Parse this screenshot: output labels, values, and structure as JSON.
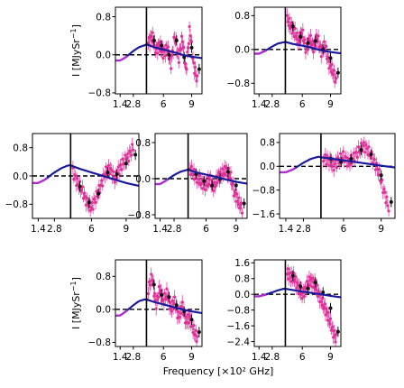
{
  "figure": {
    "xlabel": "Frequency [×10² GHz]",
    "ylabel_prefix": "I [MJySr",
    "ylabel_exp": "−1",
    "ylabel_suffix": "]"
  },
  "colors": {
    "model": "#1a1aa0",
    "model_low": "#b02bd0",
    "data": "#e0309a",
    "zero_line": "#000000",
    "divider": "#000000",
    "binned": "#111111"
  },
  "chart_data": [
    {
      "type": "scatter",
      "xlim": [
        0.9,
        10.1
      ],
      "ylim": [
        -0.82,
        1.0
      ],
      "xticks": [
        1.4,
        2.8,
        6,
        9
      ],
      "xtick_labels": [
        "1.4",
        "2.8",
        "6",
        "9"
      ],
      "yticks": [
        0.8,
        0.0,
        -0.8
      ],
      "ytick_labels": [
        "0.8",
        "0.0",
        "−0.8"
      ],
      "divider_x": 4.2,
      "show_ylabel": true,
      "show_xlabel": false,
      "model": {
        "x": [
          0.9,
          1.4,
          2.0,
          2.8,
          3.4,
          4.0,
          4.2,
          5,
          6,
          7,
          8,
          9,
          10.1
        ],
        "y": [
          -0.12,
          -0.12,
          -0.05,
          0.08,
          0.16,
          0.2,
          0.22,
          0.16,
          0.11,
          0.06,
          0.0,
          -0.04,
          -0.07
        ]
      },
      "data": {
        "x": [
          4.4,
          4.8,
          5.2,
          5.6,
          6.0,
          6.4,
          6.8,
          7.2,
          7.6,
          8.0,
          8.4,
          8.8,
          9.2,
          9.6
        ],
        "y": [
          0.25,
          0.4,
          0.1,
          0.2,
          0.02,
          0.15,
          -0.2,
          0.4,
          -0.1,
          0.35,
          -0.35,
          0.55,
          -0.2,
          -0.55
        ]
      },
      "binned": {
        "x": [
          5.0,
          5.8,
          6.6,
          7.4,
          8.2,
          9.0,
          9.8
        ],
        "y": [
          0.3,
          0.2,
          0.0,
          0.3,
          -0.05,
          0.15,
          -0.3
        ]
      }
    },
    {
      "type": "scatter",
      "xlim": [
        0.9,
        10.1
      ],
      "ylim": [
        -1.05,
        1.0
      ],
      "xticks": [
        1.4,
        2.8,
        6,
        9
      ],
      "xtick_labels": [
        "1.4",
        "2.8",
        "6",
        "9"
      ],
      "yticks": [
        0.8,
        0.0,
        -0.8
      ],
      "ytick_labels": [
        "0.8",
        "0.0",
        "−0.8"
      ],
      "divider_x": 4.2,
      "show_ylabel": false,
      "show_xlabel": false,
      "model": {
        "x": [
          0.9,
          1.4,
          2.0,
          2.8,
          3.4,
          4.0,
          4.2,
          5,
          6,
          7,
          8,
          9,
          10.1
        ],
        "y": [
          -0.1,
          -0.1,
          -0.04,
          0.07,
          0.14,
          0.17,
          0.18,
          0.13,
          0.09,
          0.04,
          -0.02,
          -0.06,
          -0.09
        ]
      },
      "data": {
        "x": [
          4.4,
          4.8,
          5.2,
          5.6,
          6.0,
          6.4,
          6.8,
          7.2,
          7.6,
          8.0,
          8.4,
          8.8,
          9.2,
          9.6
        ],
        "y": [
          0.7,
          0.55,
          0.4,
          0.2,
          0.4,
          0.0,
          0.25,
          0.05,
          0.3,
          -0.05,
          0.1,
          -0.3,
          -0.5,
          -0.75
        ]
      },
      "binned": {
        "x": [
          5.0,
          5.8,
          6.6,
          7.4,
          8.2,
          9.0,
          9.8
        ],
        "y": [
          0.55,
          0.3,
          0.15,
          0.2,
          0.0,
          -0.2,
          -0.55
        ]
      }
    },
    {
      "type": "scatter",
      "xlim": [
        0.9,
        10.1
      ],
      "ylim": [
        -1.2,
        1.2
      ],
      "xticks": [
        1.4,
        2.8,
        6,
        9
      ],
      "xtick_labels": [
        "1.4",
        "2.8",
        "6",
        "9"
      ],
      "yticks": [
        0.8,
        0.0,
        -0.8
      ],
      "ytick_labels": [
        "0.8",
        "0.0",
        "−0.8"
      ],
      "divider_x": 4.2,
      "show_ylabel": true,
      "show_xlabel": false,
      "model": {
        "x": [
          0.9,
          1.4,
          2.0,
          2.8,
          3.4,
          4.0,
          4.2,
          5,
          6,
          7,
          8,
          9,
          10.1
        ],
        "y": [
          -0.2,
          -0.2,
          -0.1,
          0.1,
          0.22,
          0.3,
          0.3,
          0.2,
          0.1,
          0.0,
          -0.1,
          -0.2,
          -0.28
        ]
      },
      "data": {
        "x": [
          4.4,
          4.8,
          5.2,
          5.6,
          6.0,
          6.4,
          6.8,
          7.2,
          7.6,
          8.0,
          8.4,
          8.8,
          9.2,
          9.6
        ],
        "y": [
          0.1,
          -0.2,
          -0.4,
          -0.75,
          -0.9,
          -0.6,
          -0.3,
          0.1,
          0.2,
          -0.1,
          0.2,
          0.4,
          0.55,
          0.8
        ]
      },
      "binned": {
        "x": [
          5.0,
          5.8,
          6.6,
          7.4,
          8.2,
          9.0,
          9.8
        ],
        "y": [
          -0.3,
          -0.75,
          -0.5,
          0.1,
          0.05,
          0.35,
          0.6
        ]
      }
    },
    {
      "type": "scatter",
      "xlim": [
        0.9,
        10.1
      ],
      "ylim": [
        -0.88,
        1.0
      ],
      "xticks": [
        1.4,
        2.8,
        6,
        9
      ],
      "xtick_labels": [
        "1.4",
        "2.8",
        "6",
        "9"
      ],
      "yticks": [
        0.8,
        0.0,
        -0.8
      ],
      "ytick_labels": [
        "0.8",
        "0.0",
        "−0.8"
      ],
      "divider_x": 4.2,
      "show_ylabel": false,
      "show_xlabel": false,
      "model": {
        "x": [
          0.9,
          1.4,
          2.0,
          2.8,
          3.4,
          4.0,
          4.2,
          5,
          6,
          7,
          8,
          9,
          10.1
        ],
        "y": [
          -0.12,
          -0.12,
          -0.04,
          0.08,
          0.15,
          0.19,
          0.2,
          0.14,
          0.09,
          0.04,
          -0.02,
          -0.07,
          -0.11
        ]
      },
      "data": {
        "x": [
          4.4,
          4.8,
          5.2,
          5.6,
          6.0,
          6.4,
          6.8,
          7.2,
          7.6,
          8.0,
          8.4,
          8.8,
          9.2,
          9.6
        ],
        "y": [
          0.2,
          0.1,
          0.0,
          -0.1,
          -0.15,
          0.0,
          -0.2,
          0.05,
          0.1,
          0.2,
          0.1,
          -0.3,
          -0.5,
          -0.65
        ]
      },
      "binned": {
        "x": [
          5.0,
          5.8,
          6.6,
          7.4,
          8.2,
          9.0,
          9.8
        ],
        "y": [
          0.1,
          -0.05,
          -0.15,
          0.0,
          0.15,
          -0.15,
          -0.55
        ]
      }
    },
    {
      "type": "scatter",
      "xlim": [
        0.9,
        10.1
      ],
      "ylim": [
        -1.75,
        1.1
      ],
      "xticks": [
        1.4,
        2.8,
        6,
        9
      ],
      "xtick_labels": [
        "1.4",
        "2.8",
        "6",
        "9"
      ],
      "yticks": [
        0.8,
        0.0,
        -0.8,
        -1.6
      ],
      "ytick_labels": [
        "0.8",
        "0.0",
        "−0.8",
        "−1.6"
      ],
      "divider_x": 4.2,
      "show_ylabel": false,
      "show_xlabel": false,
      "model": {
        "x": [
          0.9,
          1.4,
          2.0,
          2.8,
          3.4,
          4.0,
          4.2,
          5,
          6,
          7,
          8,
          9,
          10.1
        ],
        "y": [
          -0.2,
          -0.2,
          -0.1,
          0.12,
          0.25,
          0.32,
          0.3,
          0.26,
          0.2,
          0.14,
          0.08,
          0.02,
          -0.04
        ]
      },
      "data": {
        "x": [
          4.4,
          4.8,
          5.2,
          5.6,
          6.0,
          6.4,
          6.8,
          7.2,
          7.6,
          8.0,
          8.4,
          8.8,
          9.2,
          9.6
        ],
        "y": [
          0.3,
          0.2,
          0.0,
          0.2,
          0.35,
          0.1,
          0.3,
          0.5,
          0.7,
          0.5,
          0.2,
          -0.2,
          -0.8,
          -1.4
        ]
      },
      "binned": {
        "x": [
          5.0,
          5.8,
          6.6,
          7.4,
          8.2,
          9.0,
          9.8
        ],
        "y": [
          0.25,
          0.15,
          0.25,
          0.55,
          0.4,
          -0.3,
          -1.2
        ]
      }
    },
    {
      "type": "scatter",
      "xlim": [
        0.9,
        10.1
      ],
      "ylim": [
        -0.9,
        1.2
      ],
      "xticks": [
        1.4,
        2.8,
        6,
        9
      ],
      "xtick_labels": [
        "1.4",
        "2.8",
        "6",
        "9"
      ],
      "yticks": [
        0.8,
        0.0,
        -0.8
      ],
      "ytick_labels": [
        "0.8",
        "0.0",
        "−0.8"
      ],
      "divider_x": 4.2,
      "show_ylabel": true,
      "show_xlabel": true,
      "model": {
        "x": [
          0.9,
          1.4,
          2.0,
          2.8,
          3.4,
          4.0,
          4.2,
          5,
          6,
          7,
          8,
          9,
          10.1
        ],
        "y": [
          -0.15,
          -0.15,
          -0.05,
          0.1,
          0.2,
          0.24,
          0.24,
          0.18,
          0.12,
          0.06,
          0.0,
          -0.05,
          -0.09
        ]
      },
      "data": {
        "x": [
          4.4,
          4.8,
          5.2,
          5.6,
          6.0,
          6.4,
          6.8,
          7.2,
          7.6,
          8.0,
          8.4,
          8.8,
          9.2,
          9.6
        ],
        "y": [
          0.5,
          0.8,
          0.1,
          0.5,
          0.2,
          0.4,
          0.0,
          0.2,
          -0.2,
          0.1,
          -0.3,
          -0.2,
          -0.5,
          -0.7
        ]
      },
      "binned": {
        "x": [
          5.0,
          5.8,
          6.6,
          7.4,
          8.2,
          9.0,
          9.8
        ],
        "y": [
          0.6,
          0.35,
          0.3,
          0.1,
          -0.05,
          -0.25,
          -0.55
        ]
      }
    },
    {
      "type": "scatter",
      "xlim": [
        0.9,
        10.1
      ],
      "ylim": [
        -2.65,
        1.75
      ],
      "xticks": [
        1.4,
        2.8,
        6,
        9
      ],
      "xtick_labels": [
        "1.4",
        "2.8",
        "6",
        "9"
      ],
      "yticks": [
        1.6,
        0.8,
        0.0,
        -0.8,
        -1.6,
        -2.4
      ],
      "ytick_labels": [
        "1.6",
        "0.8",
        "0.0",
        "−0.8",
        "−1.6",
        "−2.4"
      ],
      "divider_x": 4.2,
      "show_ylabel": false,
      "show_xlabel": false,
      "model": {
        "x": [
          0.9,
          1.4,
          2.0,
          2.8,
          3.4,
          4.0,
          4.2,
          5,
          6,
          7,
          8,
          9,
          10.1
        ],
        "y": [
          -0.1,
          -0.1,
          -0.03,
          0.1,
          0.2,
          0.28,
          0.28,
          0.22,
          0.14,
          0.07,
          0.0,
          -0.08,
          -0.15
        ]
      },
      "data": {
        "x": [
          4.4,
          4.8,
          5.2,
          5.6,
          6.0,
          6.4,
          6.8,
          7.2,
          7.6,
          8.0,
          8.4,
          8.8,
          9.2,
          9.6
        ],
        "y": [
          1.1,
          0.9,
          0.8,
          0.3,
          0.0,
          0.3,
          0.7,
          0.6,
          0.2,
          -0.3,
          -0.7,
          -1.2,
          -1.8,
          -2.3
        ]
      },
      "binned": {
        "x": [
          5.0,
          5.8,
          6.6,
          7.4,
          8.2,
          9.0,
          9.8
        ],
        "y": [
          0.95,
          0.4,
          0.3,
          0.6,
          0.1,
          -0.7,
          -1.9
        ]
      }
    }
  ]
}
